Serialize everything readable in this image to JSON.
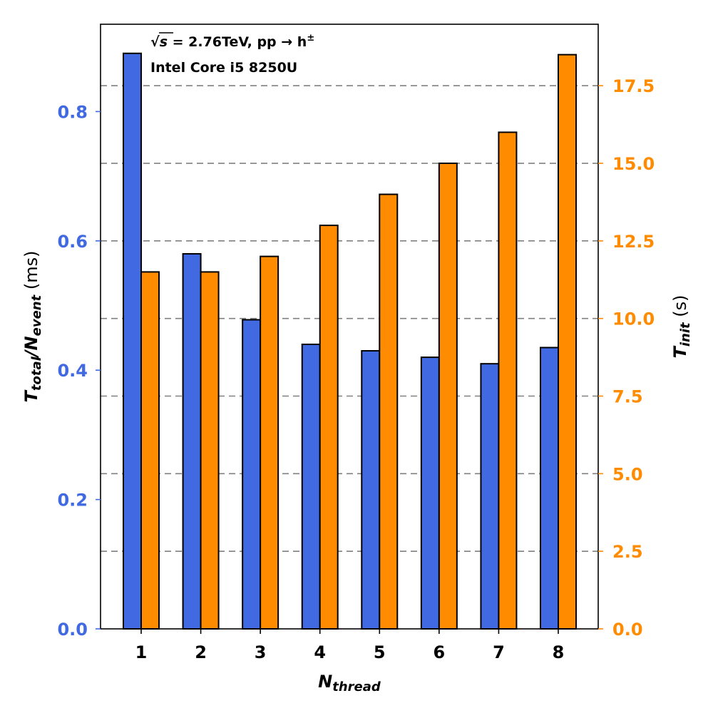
{
  "colors": {
    "left_series": "#4169e1",
    "right_series": "#ff8c00",
    "grid": "#808080",
    "edge": "#000000"
  },
  "chart_data": {
    "type": "bar",
    "categories": [
      "1",
      "2",
      "3",
      "4",
      "5",
      "6",
      "7",
      "8"
    ],
    "series": [
      {
        "name": "T_total/N_event",
        "axis": "left",
        "unit": "ms",
        "values": [
          0.89,
          0.58,
          0.478,
          0.44,
          0.43,
          0.42,
          0.41,
          0.435
        ]
      },
      {
        "name": "T_init",
        "axis": "right",
        "unit": "s",
        "values": [
          11.5,
          11.5,
          12.0,
          13.0,
          14.0,
          15.0,
          16.0,
          18.5
        ]
      }
    ],
    "xlabel": {
      "main": "N",
      "sub": "thread"
    },
    "ylabel_left": {
      "main": "T",
      "sub1": "total",
      "slash": "/N",
      "sub2": "event",
      "unit": " (ms)"
    },
    "ylabel_right": {
      "main": "T",
      "sub": "init",
      "unit": " (s)"
    },
    "ylim_left": [
      0,
      0.935
    ],
    "ylim_right": [
      0,
      19.48
    ],
    "yticks_left": [
      "0.0",
      "0.2",
      "0.4",
      "0.6",
      "0.8"
    ],
    "yticks_right": [
      "0.0",
      "2.5",
      "5.0",
      "7.5",
      "10.0",
      "12.5",
      "15.0",
      "17.5"
    ],
    "grid": "horizontal dashed at right-axis ticks",
    "annotations": {
      "line1_sqrt": "√",
      "line1_s": "s",
      "line1_rest": " = 2.76TeV, pp → h",
      "line1_sup": "±",
      "line2": "Intel Core i5 8250U"
    }
  }
}
